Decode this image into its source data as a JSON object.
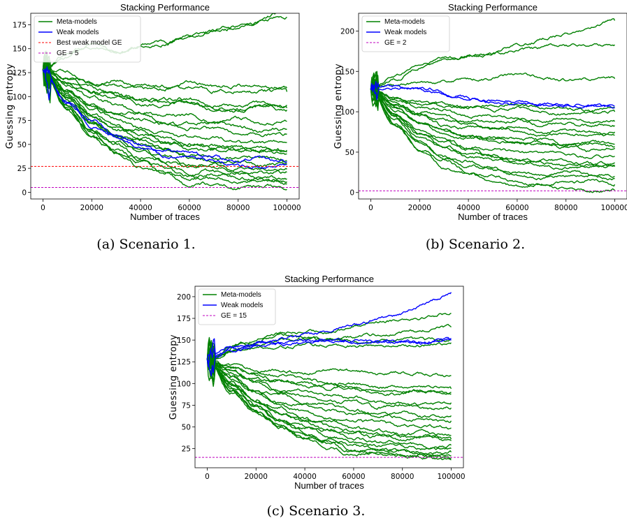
{
  "colors": {
    "meta": "#008000",
    "weak": "#0000ff",
    "best_weak": "#ff0000",
    "ge": "#bf00bf"
  },
  "chart_data": [
    {
      "type": "line",
      "title": "Stacking Performance",
      "xlabel": "Number of traces",
      "ylabel": "Guessing entropy",
      "xlim": [
        -5000,
        105000
      ],
      "ylim": [
        -7,
        187
      ],
      "xticks": [
        0,
        20000,
        40000,
        60000,
        80000,
        100000
      ],
      "yticks": [
        0,
        25,
        50,
        75,
        100,
        125,
        150,
        175
      ],
      "caption": "(a) Scenario 1.",
      "legend": {
        "location": "upper-left",
        "entries": [
          {
            "label": "Meta-models",
            "style": "meta"
          },
          {
            "label": "Weak models",
            "style": "weak"
          },
          {
            "label": "Best weak model GE",
            "style": "best"
          },
          {
            "label": "GE = 5",
            "style": "ge"
          }
        ]
      },
      "hlines": [
        {
          "name": "Best weak model GE",
          "y": 27,
          "style": "best"
        },
        {
          "name": "GE = 5",
          "y": 5,
          "style": "ge"
        }
      ],
      "series": [
        {
          "group": "meta",
          "start": 128,
          "end": 190,
          "points": [
            [
              0,
              128
            ],
            [
              8000,
              140
            ],
            [
              15000,
              150
            ],
            [
              22000,
              156
            ],
            [
              30000,
              147
            ],
            [
              50000,
              158
            ],
            [
              70000,
              168
            ],
            [
              85000,
              176
            ],
            [
              100000,
              190
            ]
          ]
        },
        {
          "group": "meta",
          "start": 128,
          "end": 183,
          "points": [
            [
              0,
              128
            ],
            [
              10000,
              144
            ],
            [
              20000,
              152
            ],
            [
              30000,
              148
            ],
            [
              45000,
              153
            ],
            [
              60000,
              163
            ],
            [
              80000,
              174
            ],
            [
              100000,
              183
            ]
          ]
        },
        {
          "group": "meta",
          "start": 128,
          "end": 109
        },
        {
          "group": "meta",
          "start": 128,
          "end": 105
        },
        {
          "group": "meta",
          "start": 128,
          "end": 91
        },
        {
          "group": "meta",
          "start": 128,
          "end": 88
        },
        {
          "group": "meta",
          "start": 128,
          "end": 86
        },
        {
          "group": "meta",
          "start": 128,
          "end": 74
        },
        {
          "group": "meta",
          "start": 128,
          "end": 66
        },
        {
          "group": "meta",
          "start": 128,
          "end": 61
        },
        {
          "group": "meta",
          "start": 128,
          "end": 52
        },
        {
          "group": "meta",
          "start": 128,
          "end": 44
        },
        {
          "group": "meta",
          "start": 128,
          "end": 42
        },
        {
          "group": "meta",
          "start": 128,
          "end": 40
        },
        {
          "group": "meta",
          "start": 128,
          "end": 33
        },
        {
          "group": "meta",
          "start": 128,
          "end": 30
        },
        {
          "group": "meta",
          "start": 128,
          "end": 24
        },
        {
          "group": "meta",
          "start": 128,
          "end": 21
        },
        {
          "group": "meta",
          "start": 128,
          "end": 14
        },
        {
          "group": "meta",
          "start": 128,
          "end": 11
        },
        {
          "group": "meta",
          "start": 128,
          "end": 9
        },
        {
          "group": "meta",
          "start": 128,
          "end": 3
        },
        {
          "group": "weak",
          "start": 128,
          "end": 32
        },
        {
          "group": "weak",
          "start": 128,
          "end": 29
        }
      ]
    },
    {
      "type": "line",
      "title": "Stacking Performance",
      "xlabel": "Number of traces",
      "ylabel": "Guessing entropy",
      "xlim": [
        -5000,
        105000
      ],
      "ylim": [
        -8,
        222
      ],
      "xticks": [
        0,
        20000,
        40000,
        60000,
        80000,
        100000
      ],
      "yticks": [
        0,
        50,
        100,
        150,
        200
      ],
      "caption": "(b) Scenario 2.",
      "legend": {
        "location": "upper-left",
        "entries": [
          {
            "label": "Meta-models",
            "style": "meta"
          },
          {
            "label": "Weak models",
            "style": "weak"
          },
          {
            "label": "GE = 2",
            "style": "ge"
          }
        ]
      },
      "hlines": [
        {
          "name": "GE = 2",
          "y": 2,
          "style": "ge"
        }
      ],
      "series": [
        {
          "group": "meta",
          "start": 128,
          "end": 213,
          "points": [
            [
              0,
              128
            ],
            [
              10000,
              145
            ],
            [
              20000,
              158
            ],
            [
              30000,
              166
            ],
            [
              45000,
              170
            ],
            [
              60000,
              182
            ],
            [
              80000,
              196
            ],
            [
              100000,
              213
            ]
          ]
        },
        {
          "group": "meta",
          "start": 128,
          "end": 183,
          "points": [
            [
              0,
              128
            ],
            [
              10000,
              140
            ],
            [
              20000,
              155
            ],
            [
              30000,
              165
            ],
            [
              45000,
              170
            ],
            [
              60000,
              176
            ],
            [
              80000,
              182
            ],
            [
              100000,
              183
            ]
          ]
        },
        {
          "group": "meta",
          "start": 128,
          "end": 141,
          "points": [
            [
              0,
              128
            ],
            [
              10000,
              133
            ],
            [
              25000,
              137
            ],
            [
              45000,
              140
            ],
            [
              60000,
              146
            ],
            [
              80000,
              139
            ],
            [
              100000,
              141
            ]
          ]
        },
        {
          "group": "meta",
          "start": 128,
          "end": 105
        },
        {
          "group": "meta",
          "start": 128,
          "end": 100
        },
        {
          "group": "meta",
          "start": 128,
          "end": 88
        },
        {
          "group": "meta",
          "start": 128,
          "end": 83
        },
        {
          "group": "meta",
          "start": 128,
          "end": 75
        },
        {
          "group": "meta",
          "start": 128,
          "end": 71
        },
        {
          "group": "meta",
          "start": 128,
          "end": 60
        },
        {
          "group": "meta",
          "start": 128,
          "end": 57
        },
        {
          "group": "meta",
          "start": 128,
          "end": 55
        },
        {
          "group": "meta",
          "start": 128,
          "end": 45
        },
        {
          "group": "meta",
          "start": 128,
          "end": 37
        },
        {
          "group": "meta",
          "start": 128,
          "end": 34
        },
        {
          "group": "meta",
          "start": 128,
          "end": 32
        },
        {
          "group": "meta",
          "start": 128,
          "end": 20
        },
        {
          "group": "meta",
          "start": 128,
          "end": 17
        },
        {
          "group": "meta",
          "start": 128,
          "end": 10
        },
        {
          "group": "meta",
          "start": 128,
          "end": 3
        },
        {
          "group": "weak",
          "start": 128,
          "end": 107,
          "points": [
            [
              0,
              128
            ],
            [
              5000,
              132
            ],
            [
              15000,
              130
            ],
            [
              25000,
              128
            ],
            [
              35000,
              116
            ],
            [
              50000,
              114
            ],
            [
              65000,
              111
            ],
            [
              80000,
              109
            ],
            [
              100000,
              107
            ]
          ]
        },
        {
          "group": "weak",
          "start": 128,
          "end": 105,
          "points": [
            [
              0,
              128
            ],
            [
              5000,
              130
            ],
            [
              15000,
              128
            ],
            [
              25000,
              126
            ],
            [
              35000,
              118
            ],
            [
              50000,
              112
            ],
            [
              65000,
              108
            ],
            [
              80000,
              107
            ],
            [
              100000,
              105
            ]
          ]
        }
      ]
    },
    {
      "type": "line",
      "title": "Stacking Performance",
      "xlabel": "Number of traces",
      "ylabel": "Guessing entropy",
      "xlim": [
        -5000,
        105000
      ],
      "ylim": [
        3,
        212
      ],
      "xticks": [
        0,
        20000,
        40000,
        60000,
        80000,
        100000
      ],
      "yticks": [
        25,
        50,
        75,
        100,
        125,
        150,
        175,
        200
      ],
      "caption": "(c) Scenario 3.",
      "legend": {
        "location": "upper-left",
        "entries": [
          {
            "label": "Meta-models",
            "style": "meta"
          },
          {
            "label": "Weak models",
            "style": "weak"
          },
          {
            "label": "GE = 15",
            "style": "ge"
          }
        ]
      },
      "hlines": [
        {
          "name": "GE = 15",
          "y": 15,
          "style": "ge"
        }
      ],
      "series": [
        {
          "group": "meta",
          "start": 128,
          "end": 181,
          "points": [
            [
              0,
              128
            ],
            [
              15000,
              148
            ],
            [
              30000,
              158
            ],
            [
              50000,
              160
            ],
            [
              70000,
              172
            ],
            [
              85000,
              176
            ],
            [
              100000,
              181
            ]
          ]
        },
        {
          "group": "meta",
          "start": 128,
          "end": 165,
          "points": [
            [
              0,
              128
            ],
            [
              15000,
              142
            ],
            [
              30000,
              150
            ],
            [
              50000,
              152
            ],
            [
              70000,
              156
            ],
            [
              85000,
              160
            ],
            [
              100000,
              165
            ]
          ]
        },
        {
          "group": "meta",
          "start": 128,
          "end": 150,
          "points": [
            [
              0,
              128
            ],
            [
              15000,
              145
            ],
            [
              30000,
              155
            ],
            [
              50000,
              150
            ],
            [
              70000,
              148
            ],
            [
              85000,
              150
            ],
            [
              100000,
              150
            ]
          ]
        },
        {
          "group": "meta",
          "start": 128,
          "end": 147,
          "points": [
            [
              0,
              128
            ],
            [
              15000,
              140
            ],
            [
              30000,
              143
            ],
            [
              50000,
              145
            ],
            [
              70000,
              143
            ],
            [
              85000,
              144
            ],
            [
              100000,
              147
            ]
          ]
        },
        {
          "group": "meta",
          "start": 128,
          "end": 109
        },
        {
          "group": "meta",
          "start": 128,
          "end": 94
        },
        {
          "group": "meta",
          "start": 128,
          "end": 90
        },
        {
          "group": "meta",
          "start": 128,
          "end": 88
        },
        {
          "group": "meta",
          "start": 128,
          "end": 78
        },
        {
          "group": "meta",
          "start": 128,
          "end": 72
        },
        {
          "group": "meta",
          "start": 128,
          "end": 63
        },
        {
          "group": "meta",
          "start": 128,
          "end": 57
        },
        {
          "group": "meta",
          "start": 128,
          "end": 49
        },
        {
          "group": "meta",
          "start": 128,
          "end": 40
        },
        {
          "group": "meta",
          "start": 128,
          "end": 36
        },
        {
          "group": "meta",
          "start": 128,
          "end": 34
        },
        {
          "group": "meta",
          "start": 128,
          "end": 29
        },
        {
          "group": "meta",
          "start": 128,
          "end": 25
        },
        {
          "group": "meta",
          "start": 128,
          "end": 21
        },
        {
          "group": "meta",
          "start": 128,
          "end": 17
        },
        {
          "group": "meta",
          "start": 128,
          "end": 14
        },
        {
          "group": "meta",
          "start": 128,
          "end": 12
        },
        {
          "group": "weak",
          "start": 128,
          "end": 205,
          "points": [
            [
              0,
              128
            ],
            [
              10000,
              140
            ],
            [
              25000,
              150
            ],
            [
              45000,
              158
            ],
            [
              60000,
              168
            ],
            [
              75000,
              176
            ],
            [
              90000,
              192
            ],
            [
              100000,
              205
            ]
          ]
        },
        {
          "group": "weak",
          "start": 128,
          "end": 152,
          "points": [
            [
              0,
              128
            ],
            [
              10000,
              142
            ],
            [
              25000,
              146
            ],
            [
              45000,
              150
            ],
            [
              60000,
              149
            ],
            [
              75000,
              148
            ],
            [
              90000,
              148
            ],
            [
              100000,
              152
            ]
          ]
        },
        {
          "group": "weak",
          "start": 128,
          "end": 150,
          "points": [
            [
              0,
              128
            ],
            [
              10000,
              138
            ],
            [
              25000,
              144
            ],
            [
              45000,
              148
            ],
            [
              60000,
              147
            ],
            [
              75000,
              147
            ],
            [
              90000,
              148
            ],
            [
              100000,
              150
            ]
          ]
        }
      ]
    }
  ]
}
